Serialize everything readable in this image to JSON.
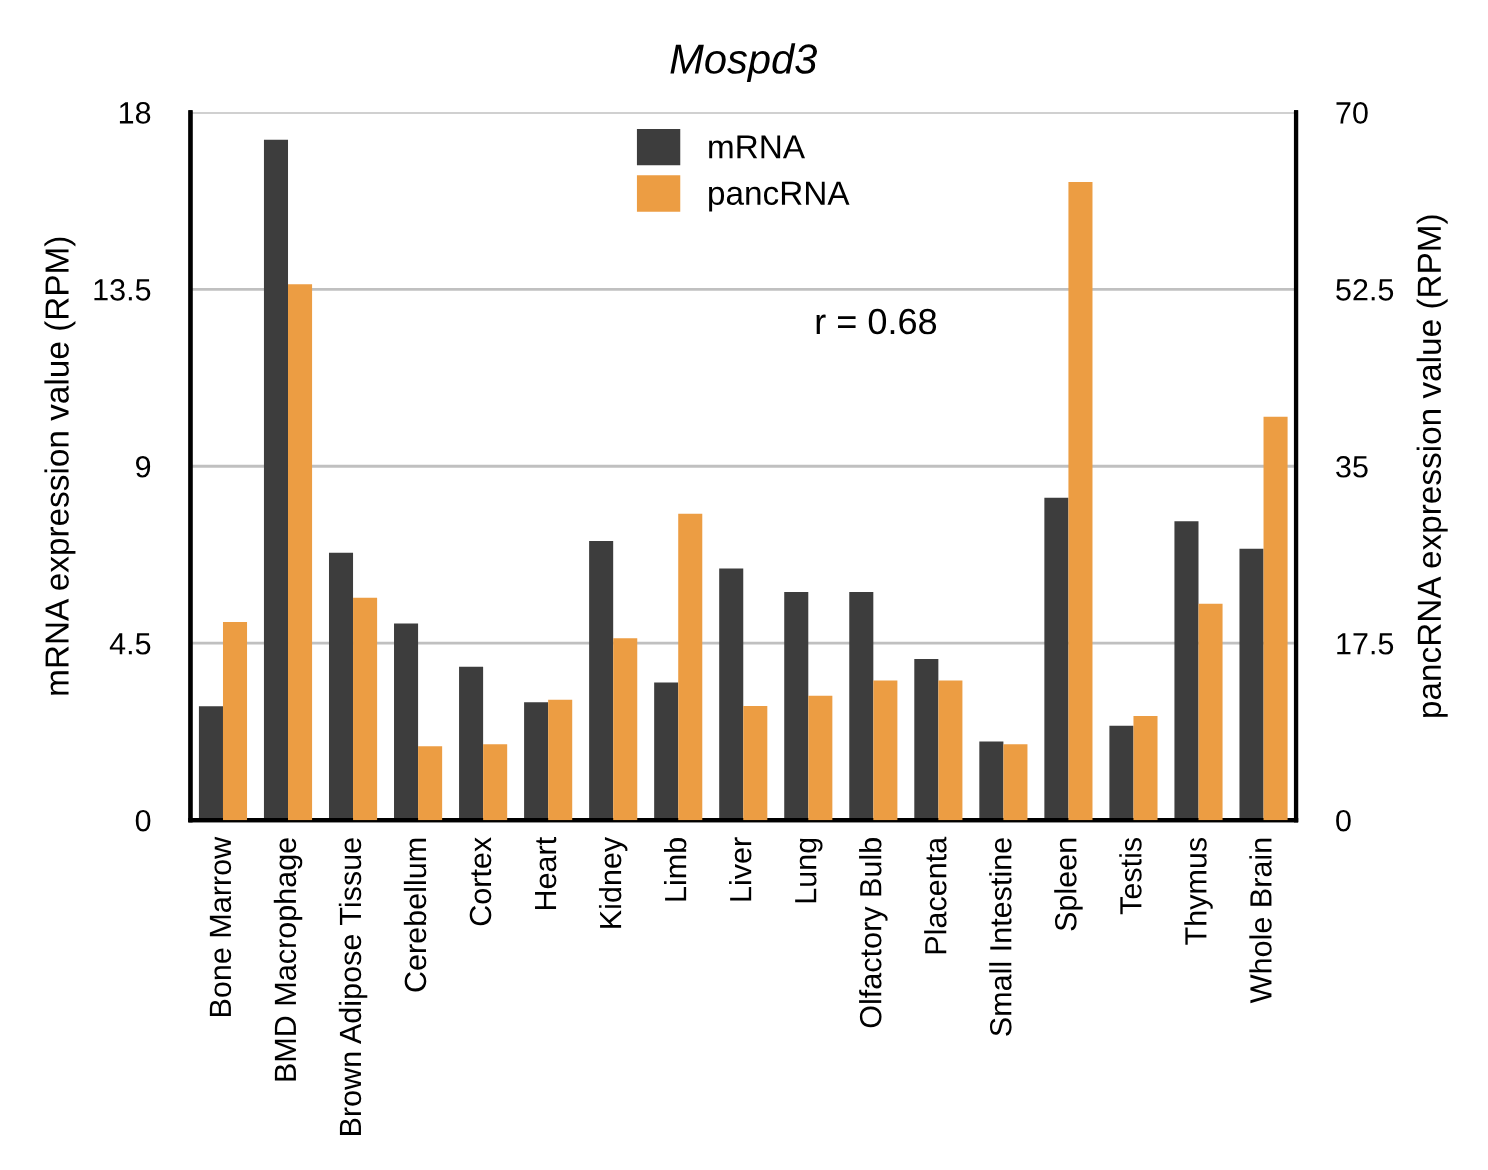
{
  "chart_data": {
    "type": "bar",
    "title": "Mospd3",
    "categories": [
      "Bone Marrow",
      "BMD Macrophage",
      "Brown Adipose Tissue",
      "Cerebellum",
      "Cortex",
      "Heart",
      "Kidney",
      "Limb",
      "Liver",
      "Lung",
      "Olfactory Bulb",
      "Placenta",
      "Small Intestine",
      "Spleen",
      "Testis",
      "Thymus",
      "Whole Brain"
    ],
    "series": [
      {
        "name": "mRNA",
        "color": "#3d3d3d",
        "values": [
          2.9,
          17.3,
          6.8,
          5.0,
          3.9,
          3.0,
          7.1,
          3.5,
          6.4,
          5.8,
          5.8,
          4.1,
          2.0,
          8.2,
          2.4,
          7.6,
          6.9
        ]
      },
      {
        "name": "pancRNA",
        "color": "#ec9d43",
        "axis": "y2",
        "values": [
          19.6,
          53.0,
          22.0,
          7.3,
          7.5,
          11.9,
          18.0,
          30.3,
          11.3,
          12.3,
          13.8,
          13.8,
          7.5,
          63.1,
          10.3,
          21.4,
          39.9
        ]
      }
    ],
    "ylabel": "mRNA expression value (RPM)",
    "y2label": "pancRNA expression value (RPM)",
    "ylim": [
      0,
      18
    ],
    "yticks": [
      0,
      4.5,
      9,
      13.5,
      18
    ],
    "y2lim": [
      0,
      70
    ],
    "y2ticks": [
      0,
      17.5,
      35,
      52.5,
      70
    ],
    "grid": "y",
    "legend": "top",
    "annotations": [
      "r = 0.68"
    ]
  }
}
